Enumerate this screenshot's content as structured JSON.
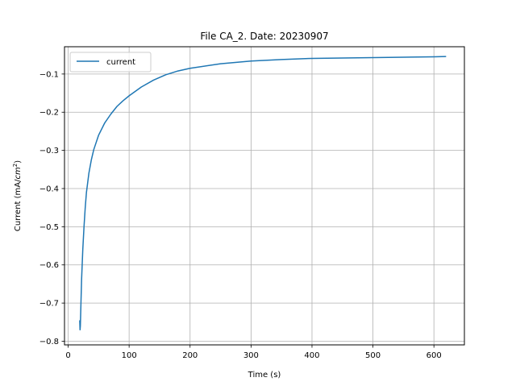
{
  "chart_data": {
    "type": "line",
    "title": "File CA_2. Date: 20230907",
    "xlabel": "Time (s)",
    "ylabel_prefix": "Current (mA/",
    "ylabel_unit": "cm",
    "ylabel_exponent": "2",
    "ylabel_suffix": ")",
    "xlim": [
      -6,
      650
    ],
    "ylim": [
      -0.8095,
      -0.0285
    ],
    "grid": true,
    "legend_position": "upper-left",
    "xticks": [
      {
        "value": 0,
        "label": "0"
      },
      {
        "value": 100,
        "label": "100"
      },
      {
        "value": 200,
        "label": "200"
      },
      {
        "value": 300,
        "label": "300"
      },
      {
        "value": 400,
        "label": "400"
      },
      {
        "value": 500,
        "label": "500"
      },
      {
        "value": 600,
        "label": "600"
      }
    ],
    "yticks": [
      {
        "value": -0.8,
        "label": "−0.8"
      },
      {
        "value": -0.7,
        "label": "−0.7"
      },
      {
        "value": -0.6,
        "label": "−0.6"
      },
      {
        "value": -0.5,
        "label": "−0.5"
      },
      {
        "value": -0.4,
        "label": "−0.4"
      },
      {
        "value": -0.3,
        "label": "−0.3"
      },
      {
        "value": -0.2,
        "label": "−0.2"
      },
      {
        "value": -0.1,
        "label": "−0.1"
      }
    ],
    "series": [
      {
        "name": "current",
        "color": "#1f77b4",
        "points": [
          [
            19,
            -0.745
          ],
          [
            19.5,
            -0.77
          ],
          [
            20,
            -0.76
          ],
          [
            21,
            -0.7
          ],
          [
            22,
            -0.64
          ],
          [
            24,
            -0.56
          ],
          [
            26,
            -0.5
          ],
          [
            28,
            -0.45
          ],
          [
            30,
            -0.41
          ],
          [
            34,
            -0.36
          ],
          [
            38,
            -0.325
          ],
          [
            42,
            -0.298
          ],
          [
            50,
            -0.26
          ],
          [
            60,
            -0.228
          ],
          [
            70,
            -0.205
          ],
          [
            80,
            -0.185
          ],
          [
            90,
            -0.17
          ],
          [
            100,
            -0.157
          ],
          [
            120,
            -0.134
          ],
          [
            140,
            -0.116
          ],
          [
            160,
            -0.102
          ],
          [
            180,
            -0.092
          ],
          [
            200,
            -0.085
          ],
          [
            250,
            -0.073
          ],
          [
            300,
            -0.066
          ],
          [
            350,
            -0.062
          ],
          [
            400,
            -0.059
          ],
          [
            450,
            -0.058
          ],
          [
            500,
            -0.057
          ],
          [
            550,
            -0.056
          ],
          [
            600,
            -0.055
          ],
          [
            620,
            -0.054
          ]
        ]
      }
    ]
  }
}
